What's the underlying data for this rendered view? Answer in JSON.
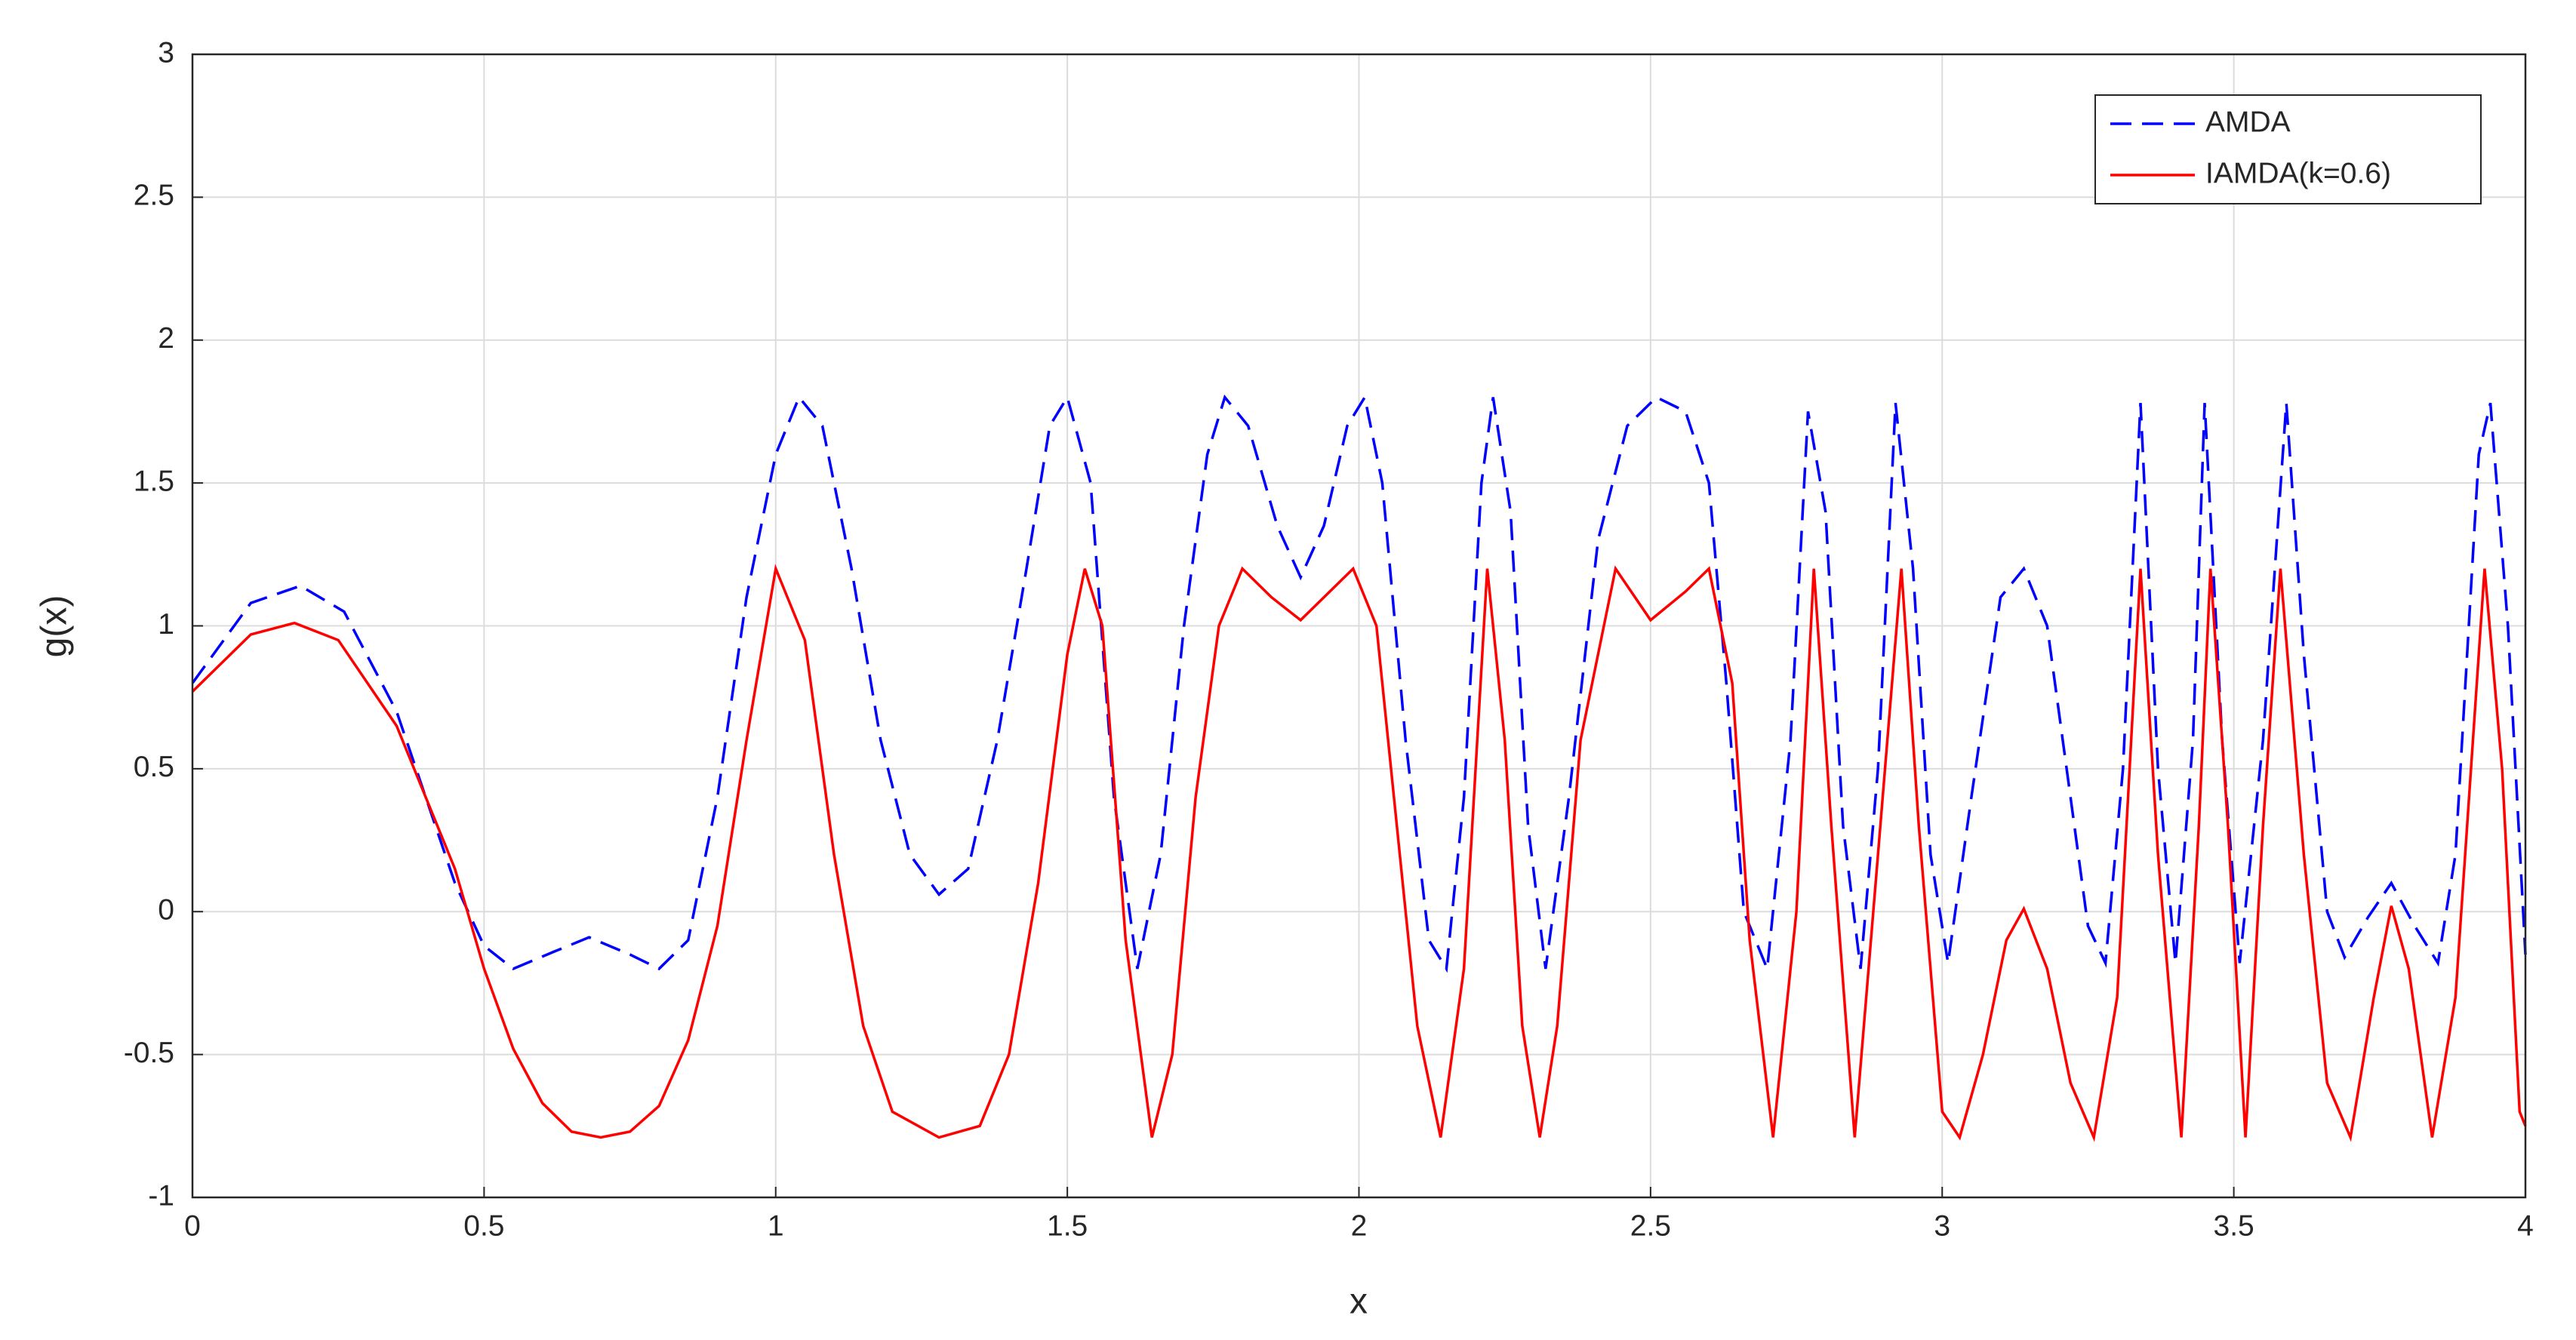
{
  "chart_data": {
    "type": "line",
    "xlabel": "x",
    "ylabel": "g(x)",
    "xlim": [
      0,
      4
    ],
    "ylim": [
      -1,
      3
    ],
    "xticks": [
      0,
      0.5,
      1,
      1.5,
      2,
      2.5,
      3,
      3.5,
      4
    ],
    "yticks": [
      -1,
      -0.5,
      0,
      0.5,
      1,
      1.5,
      2,
      2.5,
      3
    ],
    "grid": true,
    "legend": "upper right",
    "series": [
      {
        "name": "AMDA",
        "color": "#0000ff",
        "dash": true,
        "x": [
          0,
          0.1,
          0.185,
          0.26,
          0.35,
          0.45,
          0.5,
          0.55,
          0.62,
          0.68,
          0.75,
          0.8,
          0.85,
          0.9,
          0.95,
          1.0,
          1.04,
          1.08,
          1.13,
          1.18,
          1.23,
          1.28,
          1.33,
          1.38,
          1.43,
          1.47,
          1.5,
          1.54,
          1.58,
          1.62,
          1.66,
          1.7,
          1.74,
          1.77,
          1.81,
          1.86,
          1.9,
          1.94,
          1.98,
          2.01,
          2.04,
          2.08,
          2.12,
          2.15,
          2.18,
          2.21,
          2.23,
          2.26,
          2.29,
          2.32,
          2.36,
          2.41,
          2.46,
          2.51,
          2.56,
          2.6,
          2.63,
          2.66,
          2.7,
          2.74,
          2.77,
          2.8,
          2.83,
          2.86,
          2.89,
          2.92,
          2.95,
          2.98,
          3.01,
          3.05,
          3.1,
          3.14,
          3.18,
          3.22,
          3.25,
          3.28,
          3.31,
          3.34,
          3.37,
          3.4,
          3.43,
          3.45,
          3.48,
          3.51,
          3.55,
          3.59,
          3.62,
          3.66,
          3.69,
          3.73,
          3.77,
          3.81,
          3.85,
          3.88,
          3.92,
          3.94,
          3.97,
          4.0
        ],
        "values": [
          0.8,
          1.08,
          1.14,
          1.05,
          0.7,
          0.1,
          -0.12,
          -0.2,
          -0.14,
          -0.09,
          -0.15,
          -0.2,
          -0.1,
          0.4,
          1.1,
          1.6,
          1.8,
          1.7,
          1.2,
          0.6,
          0.2,
          0.06,
          0.15,
          0.6,
          1.2,
          1.7,
          1.8,
          1.5,
          0.4,
          -0.2,
          0.2,
          1.0,
          1.6,
          1.8,
          1.7,
          1.35,
          1.17,
          1.35,
          1.7,
          1.8,
          1.5,
          0.6,
          -0.1,
          -0.2,
          0.4,
          1.5,
          1.8,
          1.4,
          0.3,
          -0.2,
          0.4,
          1.3,
          1.7,
          1.8,
          1.75,
          1.5,
          0.8,
          0.0,
          -0.2,
          0.6,
          1.75,
          1.4,
          0.3,
          -0.2,
          0.5,
          1.78,
          1.2,
          0.2,
          -0.18,
          0.4,
          1.1,
          1.2,
          1.0,
          0.4,
          -0.05,
          -0.18,
          0.5,
          1.78,
          0.5,
          -0.18,
          0.6,
          1.78,
          0.6,
          -0.18,
          0.6,
          1.78,
          0.9,
          0.0,
          -0.16,
          -0.02,
          0.1,
          -0.05,
          -0.18,
          0.2,
          1.6,
          1.78,
          1.0,
          -0.15
        ]
      },
      {
        "name": "IAMDA(k=0.6)",
        "color": "#ff0000",
        "dash": false,
        "x": [
          0,
          0.1,
          0.175,
          0.25,
          0.35,
          0.45,
          0.5,
          0.55,
          0.6,
          0.65,
          0.7,
          0.75,
          0.8,
          0.85,
          0.9,
          0.95,
          1.0,
          1.05,
          1.1,
          1.15,
          1.2,
          1.28,
          1.35,
          1.4,
          1.45,
          1.5,
          1.53,
          1.56,
          1.6,
          1.645,
          1.68,
          1.72,
          1.76,
          1.8,
          1.85,
          1.9,
          1.95,
          1.99,
          2.03,
          2.07,
          2.1,
          2.14,
          2.18,
          2.22,
          2.25,
          2.28,
          2.31,
          2.34,
          2.38,
          2.44,
          2.5,
          2.56,
          2.6,
          2.64,
          2.67,
          2.71,
          2.75,
          2.78,
          2.81,
          2.85,
          2.89,
          2.93,
          2.96,
          3.0,
          3.03,
          3.07,
          3.11,
          3.14,
          3.18,
          3.22,
          3.26,
          3.3,
          3.34,
          3.37,
          3.41,
          3.44,
          3.46,
          3.49,
          3.52,
          3.55,
          3.58,
          3.62,
          3.66,
          3.7,
          3.74,
          3.77,
          3.8,
          3.84,
          3.88,
          3.93,
          3.96,
          3.99,
          4.0
        ],
        "values": [
          0.77,
          0.97,
          1.01,
          0.95,
          0.65,
          0.15,
          -0.2,
          -0.48,
          -0.67,
          -0.77,
          -0.79,
          -0.77,
          -0.68,
          -0.45,
          -0.05,
          0.6,
          1.2,
          0.95,
          0.2,
          -0.4,
          -0.7,
          -0.79,
          -0.75,
          -0.5,
          0.1,
          0.9,
          1.2,
          1.0,
          -0.1,
          -0.79,
          -0.5,
          0.4,
          1.0,
          1.2,
          1.1,
          1.02,
          1.12,
          1.2,
          1.0,
          0.2,
          -0.4,
          -0.79,
          -0.2,
          1.2,
          0.6,
          -0.4,
          -0.79,
          -0.4,
          0.6,
          1.2,
          1.02,
          1.12,
          1.2,
          0.8,
          -0.1,
          -0.79,
          0.0,
          1.2,
          0.3,
          -0.79,
          0.2,
          1.2,
          0.3,
          -0.7,
          -0.79,
          -0.5,
          -0.1,
          0.01,
          -0.2,
          -0.6,
          -0.79,
          -0.3,
          1.2,
          0.2,
          -0.79,
          0.3,
          1.2,
          0.3,
          -0.79,
          0.3,
          1.2,
          0.2,
          -0.6,
          -0.79,
          -0.3,
          0.02,
          -0.2,
          -0.79,
          -0.3,
          1.2,
          0.5,
          -0.7,
          -0.75
        ]
      }
    ]
  }
}
